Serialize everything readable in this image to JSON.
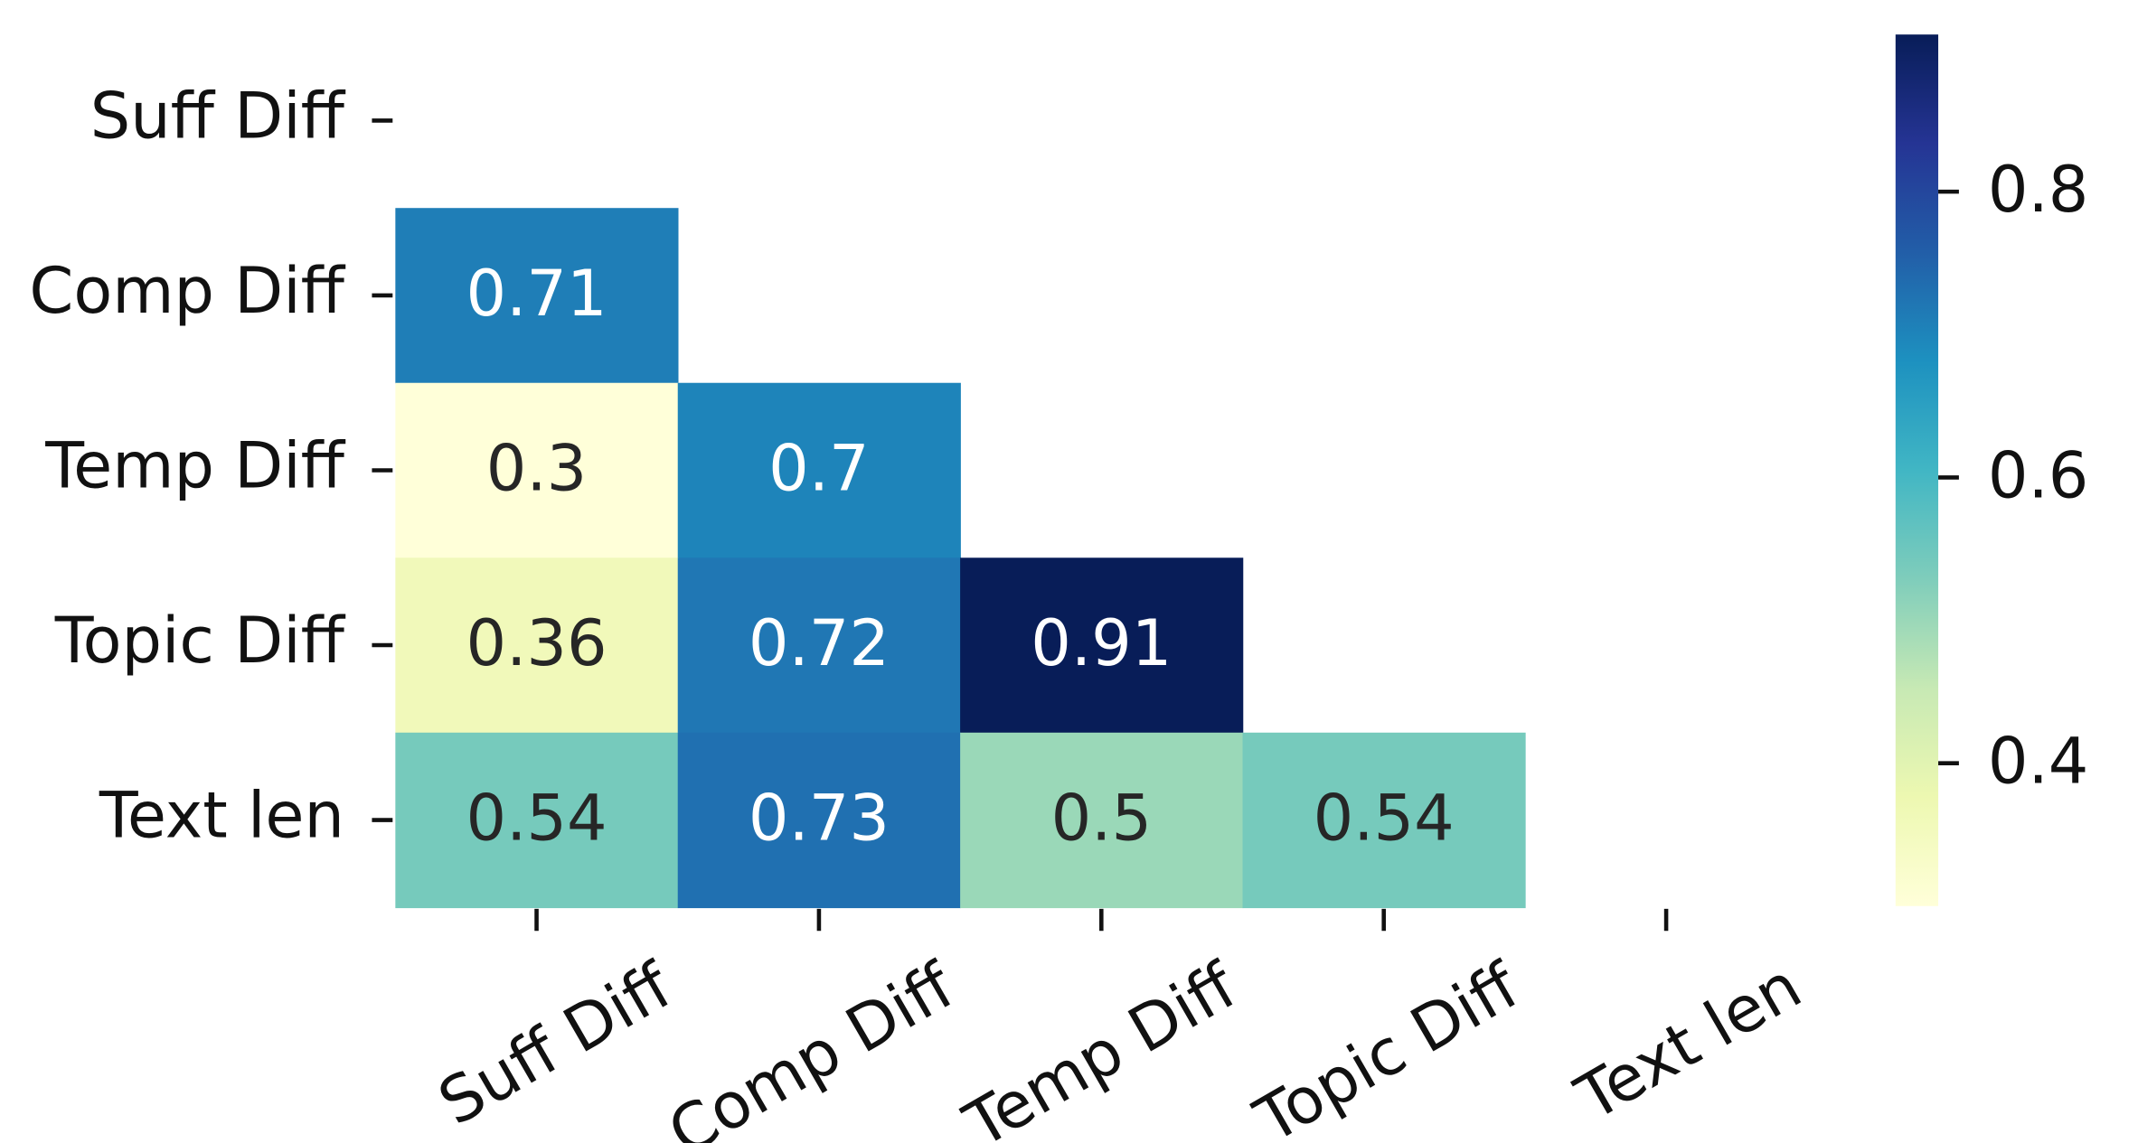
{
  "chart_data": {
    "type": "heatmap",
    "categories": [
      "Suff Diff",
      "Comp Diff",
      "Temp Diff",
      "Topic Diff",
      "Text len"
    ],
    "rows": [
      "Suff Diff",
      "Comp Diff",
      "Temp Diff",
      "Topic Diff",
      "Text len"
    ],
    "values": [
      [
        null,
        null,
        null,
        null,
        null
      ],
      [
        0.71,
        null,
        null,
        null,
        null
      ],
      [
        0.3,
        0.7,
        null,
        null,
        null
      ],
      [
        0.36,
        0.72,
        0.91,
        null,
        null
      ],
      [
        0.54,
        0.73,
        0.5,
        0.54,
        null
      ]
    ],
    "colormap": "YlGnBu",
    "clim": [
      0.3,
      0.91
    ],
    "cticks": [
      0.4,
      0.6,
      0.8
    ]
  }
}
